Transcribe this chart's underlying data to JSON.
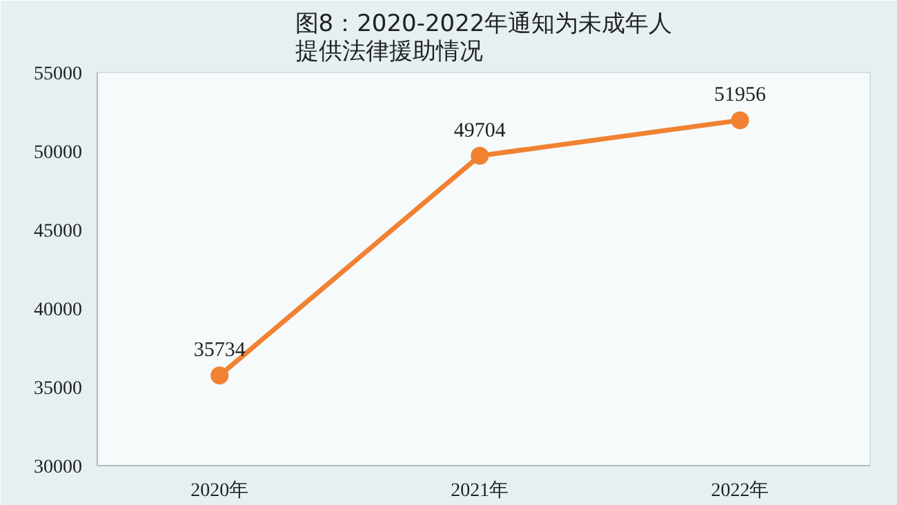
{
  "chart_data": {
    "type": "line",
    "title": "图8：2020-2022年通知为未成年人提供法律援助情况",
    "categories": [
      "2020年",
      "2021年",
      "2022年"
    ],
    "series": [
      {
        "color": "#f08232",
        "values": [
          35734,
          49704,
          51956
        ]
      }
    ],
    "ylim": [
      30000,
      55000
    ],
    "yticks": [
      30000,
      35000,
      40000,
      45000,
      50000,
      55000
    ],
    "grid": false,
    "marker": "circle",
    "line_style": "solid",
    "data_labels": true
  }
}
